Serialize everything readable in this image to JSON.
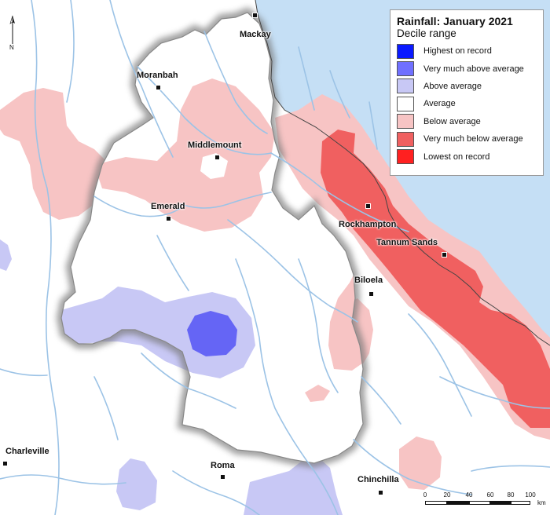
{
  "map": {
    "legend": {
      "title": "Rainfall: January 2021",
      "subtitle": "Decile range",
      "items": [
        {
          "label": "Highest on record",
          "color": "#0a1aff"
        },
        {
          "label": "Very much above average",
          "color": "#7070ff"
        },
        {
          "label": "Above average",
          "color": "#c8c8f5"
        },
        {
          "label": "Average",
          "color": "#ffffff"
        },
        {
          "label": "Below average",
          "color": "#f7c4c4"
        },
        {
          "label": "Very much below average",
          "color": "#f06060"
        },
        {
          "label": "Lowest on record",
          "color": "#ff2020"
        }
      ]
    },
    "towns": [
      {
        "name": "Mackay"
      },
      {
        "name": "Moranbah"
      },
      {
        "name": "Middlemount"
      },
      {
        "name": "Emerald"
      },
      {
        "name": "Rockhampton"
      },
      {
        "name": "Tannum Sands"
      },
      {
        "name": "Biloela"
      },
      {
        "name": "Charleville"
      },
      {
        "name": "Roma"
      },
      {
        "name": "Chinchilla"
      }
    ],
    "north_arrow": {
      "letter": "N"
    },
    "scale_bar": {
      "ticks": [
        "0",
        "20",
        "40",
        "60",
        "80",
        "100"
      ],
      "unit": "km"
    },
    "colors": {
      "ocean": "#c5dff5",
      "river": "#9cc3e6",
      "boundary_shadow": "#777777"
    }
  }
}
